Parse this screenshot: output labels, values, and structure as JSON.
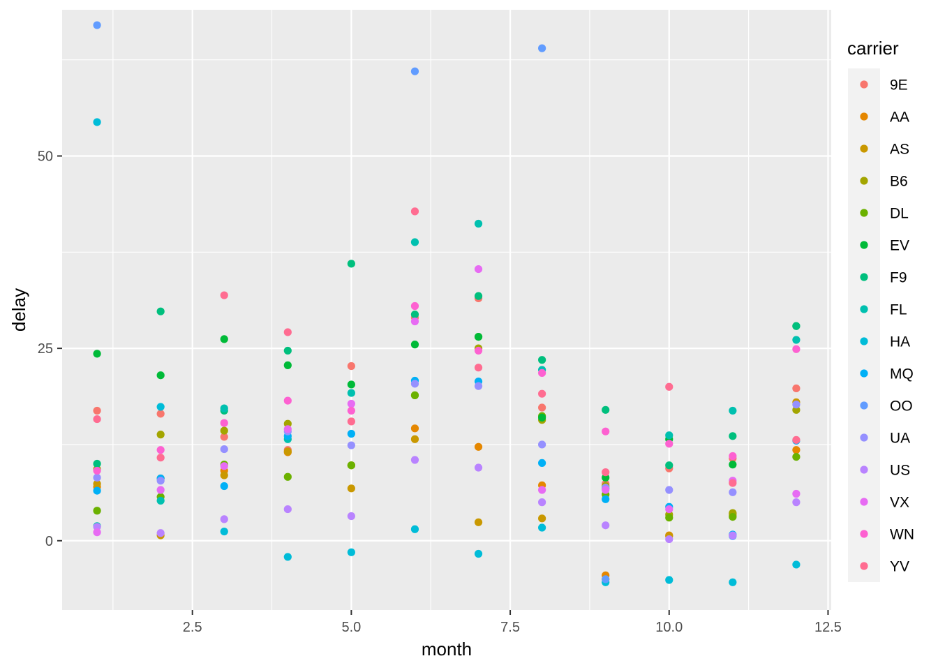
{
  "chart_data": {
    "type": "scatter",
    "xlabel": "month",
    "ylabel": "delay",
    "xlim": [
      0.45,
      12.55
    ],
    "ylim": [
      -9,
      69
    ],
    "x_ticks": [
      2.5,
      5.0,
      7.5,
      10.0,
      12.5
    ],
    "x_tick_labels": [
      "2.5",
      "5.0",
      "7.5",
      "10.0",
      "12.5"
    ],
    "y_ticks": [
      0,
      25,
      50
    ],
    "y_tick_labels": [
      "0",
      "25",
      "50"
    ],
    "grid": true,
    "legend": {
      "title": "carrier",
      "position": "right"
    },
    "series": [
      {
        "name": "9E",
        "color": "#F8766D",
        "points": [
          [
            1,
            16.9
          ],
          [
            2,
            16.5
          ],
          [
            3,
            13.5
          ],
          [
            4,
            11.8
          ],
          [
            5,
            22.7
          ],
          [
            6,
            29.0
          ],
          [
            7,
            31.5
          ],
          [
            8,
            17.3
          ],
          [
            9,
            7.4
          ],
          [
            10,
            9.4
          ],
          [
            11,
            10.7
          ],
          [
            12,
            19.8
          ]
        ]
      },
      {
        "name": "AA",
        "color": "#E58700",
        "points": [
          [
            1,
            7.0
          ],
          [
            2,
            8.1
          ],
          [
            3,
            9.1
          ],
          [
            4,
            11.5
          ],
          [
            5,
            9.8
          ],
          [
            6,
            14.6
          ],
          [
            7,
            12.2
          ],
          [
            8,
            7.2
          ],
          [
            9,
            -4.5
          ],
          [
            10,
            0.7
          ],
          [
            11,
            3.3
          ],
          [
            12,
            11.8
          ]
        ]
      },
      {
        "name": "AS",
        "color": "#C99800",
        "points": [
          [
            1,
            7.4
          ],
          [
            2,
            0.7
          ],
          [
            3,
            8.5
          ],
          [
            4,
            11.6
          ],
          [
            5,
            6.8
          ],
          [
            6,
            13.2
          ],
          [
            7,
            2.4
          ],
          [
            8,
            2.9
          ],
          [
            9,
            -5.0
          ],
          [
            10,
            0.6
          ],
          [
            11,
            3.5
          ],
          [
            12,
            18.0
          ]
        ]
      },
      {
        "name": "B6",
        "color": "#A3A500",
        "points": [
          [
            1,
            9.3
          ],
          [
            2,
            13.8
          ],
          [
            3,
            14.3
          ],
          [
            4,
            15.2
          ],
          [
            5,
            9.8
          ],
          [
            6,
            18.9
          ],
          [
            7,
            25.0
          ],
          [
            8,
            15.7
          ],
          [
            9,
            7.1
          ],
          [
            10,
            3.4
          ],
          [
            11,
            3.6
          ],
          [
            12,
            17.0
          ]
        ]
      },
      {
        "name": "DL",
        "color": "#6BB100",
        "points": [
          [
            1,
            3.9
          ],
          [
            2,
            5.7
          ],
          [
            3,
            9.9
          ],
          [
            4,
            8.3
          ],
          [
            5,
            9.8
          ],
          [
            6,
            18.9
          ],
          [
            7,
            26.5
          ],
          [
            8,
            16.2
          ],
          [
            9,
            6.0
          ],
          [
            10,
            3.0
          ],
          [
            11,
            3.1
          ],
          [
            12,
            10.9
          ]
        ]
      },
      {
        "name": "EV",
        "color": "#00BA38",
        "points": [
          [
            1,
            24.3
          ],
          [
            2,
            21.5
          ],
          [
            3,
            26.2
          ],
          [
            4,
            22.8
          ],
          [
            5,
            20.3
          ],
          [
            6,
            25.5
          ],
          [
            7,
            26.5
          ],
          [
            8,
            16.0
          ],
          [
            9,
            8.2
          ],
          [
            10,
            13.2
          ],
          [
            11,
            9.9
          ],
          [
            12,
            27.9
          ]
        ]
      },
      {
        "name": "F9",
        "color": "#00BF7D",
        "points": [
          [
            1,
            10.0
          ],
          [
            2,
            29.8
          ],
          [
            3,
            16.9
          ],
          [
            4,
            24.7
          ],
          [
            5,
            36.0
          ],
          [
            6,
            29.4
          ],
          [
            7,
            31.8
          ],
          [
            8,
            23.5
          ],
          [
            9,
            17.0
          ],
          [
            10,
            9.8
          ],
          [
            11,
            13.6
          ],
          [
            12,
            27.9
          ]
        ]
      },
      {
        "name": "FL",
        "color": "#00C0AF",
        "points": [
          [
            1,
            1.9
          ],
          [
            2,
            5.2
          ],
          [
            3,
            17.2
          ],
          [
            4,
            13.2
          ],
          [
            5,
            19.2
          ],
          [
            6,
            38.8
          ],
          [
            7,
            41.2
          ],
          [
            8,
            22.2
          ],
          [
            9,
            6.8
          ],
          [
            10,
            13.7
          ],
          [
            11,
            16.9
          ],
          [
            12,
            26.1
          ]
        ]
      },
      {
        "name": "HA",
        "color": "#00BCD8",
        "points": [
          [
            1,
            54.4
          ],
          [
            2,
            17.4
          ],
          [
            3,
            1.2
          ],
          [
            4,
            -2.1
          ],
          [
            5,
            -1.5
          ],
          [
            6,
            1.5
          ],
          [
            7,
            -1.7
          ],
          [
            8,
            1.7
          ],
          [
            9,
            -5.4
          ],
          [
            10,
            -5.1
          ],
          [
            11,
            -5.4
          ],
          [
            12,
            -3.1
          ]
        ]
      },
      {
        "name": "MQ",
        "color": "#00B0F6",
        "points": [
          [
            1,
            6.5
          ],
          [
            2,
            8.1
          ],
          [
            3,
            7.1
          ],
          [
            4,
            13.6
          ],
          [
            5,
            13.9
          ],
          [
            6,
            20.8
          ],
          [
            7,
            20.7
          ],
          [
            8,
            10.1
          ],
          [
            9,
            5.4
          ],
          [
            10,
            4.4
          ],
          [
            11,
            0.8
          ],
          [
            12,
            13.0
          ]
        ]
      },
      {
        "name": "OO",
        "color": "#619CFF",
        "points": [
          [
            1,
            67.0
          ],
          [
            6,
            61.0
          ],
          [
            8,
            64.0
          ],
          [
            9,
            -5.0
          ],
          [
            11,
            0.6
          ]
        ]
      },
      {
        "name": "UA",
        "color": "#9590FF",
        "points": [
          [
            1,
            8.2
          ],
          [
            2,
            7.8
          ],
          [
            3,
            11.9
          ],
          [
            4,
            14.2
          ],
          [
            5,
            12.4
          ],
          [
            6,
            20.4
          ],
          [
            7,
            20.1
          ],
          [
            8,
            12.5
          ],
          [
            9,
            6.9
          ],
          [
            10,
            6.6
          ],
          [
            11,
            6.3
          ],
          [
            12,
            17.7
          ]
        ]
      },
      {
        "name": "US",
        "color": "#B983FF",
        "points": [
          [
            1,
            1.8
          ],
          [
            2,
            1.0
          ],
          [
            3,
            2.8
          ],
          [
            4,
            4.1
          ],
          [
            5,
            3.2
          ],
          [
            6,
            10.5
          ],
          [
            7,
            9.5
          ],
          [
            8,
            5.0
          ],
          [
            9,
            2.0
          ],
          [
            10,
            0.2
          ],
          [
            11,
            0.7
          ],
          [
            12,
            5.0
          ]
        ]
      },
      {
        "name": "VX",
        "color": "#E76BF3",
        "points": [
          [
            1,
            1.1
          ],
          [
            2,
            6.6
          ],
          [
            3,
            9.7
          ],
          [
            4,
            14.5
          ],
          [
            5,
            17.8
          ],
          [
            6,
            28.5
          ],
          [
            7,
            35.3
          ],
          [
            8,
            6.6
          ],
          [
            9,
            6.6
          ],
          [
            10,
            4.1
          ],
          [
            11,
            7.8
          ],
          [
            12,
            6.1
          ]
        ]
      },
      {
        "name": "WN",
        "color": "#FD61D1",
        "points": [
          [
            1,
            9.1
          ],
          [
            2,
            11.8
          ],
          [
            3,
            15.3
          ],
          [
            4,
            18.2
          ],
          [
            5,
            16.9
          ],
          [
            6,
            30.5
          ],
          [
            7,
            24.7
          ],
          [
            8,
            21.8
          ],
          [
            9,
            14.2
          ],
          [
            10,
            12.6
          ],
          [
            11,
            11.0
          ],
          [
            12,
            24.9
          ]
        ]
      },
      {
        "name": "YV",
        "color": "#FF6C91",
        "points": [
          [
            1,
            15.8
          ],
          [
            2,
            10.8
          ],
          [
            3,
            31.9
          ],
          [
            4,
            27.1
          ],
          [
            5,
            15.5
          ],
          [
            6,
            42.8
          ],
          [
            7,
            22.5
          ],
          [
            8,
            19.1
          ],
          [
            9,
            8.9
          ],
          [
            10,
            20.0
          ],
          [
            11,
            7.5
          ],
          [
            12,
            13.1
          ]
        ]
      }
    ]
  }
}
